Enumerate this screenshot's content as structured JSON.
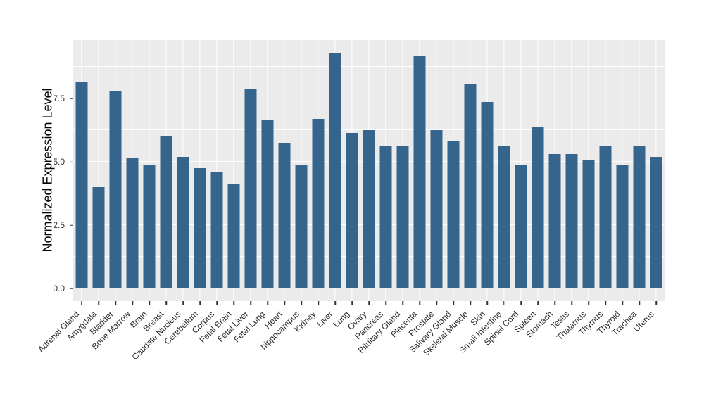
{
  "chart_data": {
    "type": "bar",
    "title": "",
    "xlabel": "",
    "ylabel": "Normalized Expression Level",
    "ylim": [
      0,
      9.78
    ],
    "yticks": [
      0.0,
      2.5,
      5.0,
      7.5
    ],
    "ytick_labels": [
      "0.0",
      "2.5",
      "5.0",
      "7.5"
    ],
    "minor_gridlines": [
      1.25,
      3.75,
      6.25,
      8.75
    ],
    "grid": true,
    "legend_position": "none",
    "categories": [
      "Adrenal Gland",
      "Amygdala",
      "Bladder",
      "Bone Marrow",
      "Brain",
      "Breast",
      "Caudate Nucleus",
      "Cerebellum",
      "Corpus",
      "Fetal Brain",
      "Fetal Liver",
      "Fetal Lung",
      "Heart",
      "hippocampus",
      "Kidney",
      "Liver",
      "Lung",
      "Ovary",
      "Pancreas",
      "Pituitary Gland",
      "Placenta",
      "Prostate",
      "Salivary Gland",
      "Skeletal Muscle",
      "Skin",
      "Small Intestine",
      "Spinal Cord",
      "Spleen",
      "Stomach",
      "Testis",
      "Thalamus",
      "Thymus",
      "Thyroid",
      "Trachea",
      "Uterus"
    ],
    "values": [
      8.15,
      4.0,
      7.8,
      5.15,
      4.9,
      6.0,
      5.2,
      4.75,
      4.6,
      4.15,
      7.9,
      6.65,
      5.75,
      4.9,
      6.7,
      9.3,
      6.15,
      6.25,
      5.65,
      5.6,
      9.2,
      6.25,
      5.8,
      8.05,
      7.35,
      5.6,
      4.9,
      6.4,
      5.3,
      5.3,
      5.05,
      5.6,
      4.85,
      5.65,
      5.2
    ]
  },
  "style": {
    "bar_color": "#35658D",
    "panel_background": "#EBEBEB",
    "grid_color": "#FFFFFF",
    "tick_color": "#333333",
    "axis_text_color": "#2b2b2b",
    "page_background": "#FFFFFF"
  }
}
